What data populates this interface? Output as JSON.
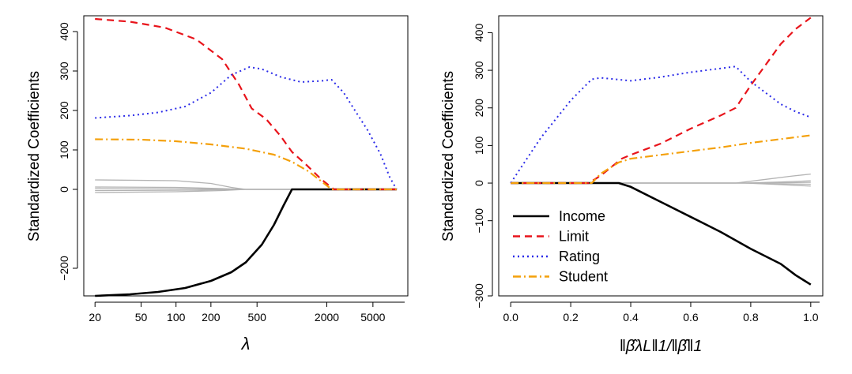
{
  "chart_data": [
    {
      "type": "line",
      "xscale": "log",
      "xlim": [
        16,
        10000
      ],
      "ylim": [
        -270,
        440
      ],
      "xlabel": "λ",
      "ylabel": "Standardized Coefficients",
      "x_ticks": [
        20,
        50,
        100,
        200,
        500,
        2000,
        5000
      ],
      "x_tick_labels": [
        "20",
        "50",
        "100",
        "200",
        "500",
        "2000",
        "5000"
      ],
      "y_ticks": [
        -200,
        0,
        100,
        200,
        300,
        400
      ],
      "y_tick_labels": [
        "−200",
        "0",
        "100",
        "200",
        "300",
        "400"
      ],
      "grid": false,
      "series": [
        {
          "name": "Income",
          "color": "#000000",
          "dash": "solid",
          "width": 2.6,
          "points": [
            [
              20,
              -270
            ],
            [
              40,
              -266
            ],
            [
              70,
              -260
            ],
            [
              120,
              -250
            ],
            [
              200,
              -232
            ],
            [
              300,
              -210
            ],
            [
              400,
              -185
            ],
            [
              550,
              -140
            ],
            [
              700,
              -90
            ],
            [
              850,
              -40
            ],
            [
              1000,
              0
            ],
            [
              8000,
              0
            ]
          ]
        },
        {
          "name": "Limit",
          "color": "#e8141b",
          "dash": "dashed",
          "width": 2.2,
          "points": [
            [
              20,
              432
            ],
            [
              40,
              425
            ],
            [
              80,
              410
            ],
            [
              150,
              380
            ],
            [
              250,
              330
            ],
            [
              350,
              265
            ],
            [
              450,
              205
            ],
            [
              600,
              178
            ],
            [
              800,
              135
            ],
            [
              1000,
              95
            ],
            [
              1300,
              65
            ],
            [
              1800,
              25
            ],
            [
              2300,
              0
            ],
            [
              8000,
              0
            ]
          ]
        },
        {
          "name": "Rating",
          "color": "#2a2ae8",
          "dash": "dotted",
          "width": 2.0,
          "points": [
            [
              20,
              181
            ],
            [
              40,
              187
            ],
            [
              70,
              195
            ],
            [
              120,
              210
            ],
            [
              200,
              245
            ],
            [
              300,
              290
            ],
            [
              430,
              310
            ],
            [
              550,
              305
            ],
            [
              800,
              285
            ],
            [
              1200,
              272
            ],
            [
              1800,
              275
            ],
            [
              2200,
              278
            ],
            [
              2800,
              245
            ],
            [
              3500,
              200
            ],
            [
              4500,
              150
            ],
            [
              5800,
              90
            ],
            [
              7000,
              30
            ],
            [
              8000,
              0
            ]
          ]
        },
        {
          "name": "Student",
          "color": "#f4a00a",
          "dash": "dashdot",
          "width": 2.2,
          "points": [
            [
              20,
              127
            ],
            [
              50,
              126
            ],
            [
              100,
              122
            ],
            [
              200,
              114
            ],
            [
              400,
              103
            ],
            [
              700,
              88
            ],
            [
              1000,
              70
            ],
            [
              1400,
              45
            ],
            [
              1800,
              20
            ],
            [
              2200,
              0
            ],
            [
              8000,
              0
            ]
          ]
        },
        {
          "name": "",
          "color": "#b3b3b3",
          "dash": "solid",
          "width": 1.3,
          "points": [
            [
              20,
              24
            ],
            [
              100,
              22
            ],
            [
              200,
              15
            ],
            [
              300,
              5
            ],
            [
              400,
              0
            ],
            [
              8000,
              0
            ]
          ]
        },
        {
          "name": "",
          "color": "#b3b3b3",
          "dash": "solid",
          "width": 1.3,
          "points": [
            [
              20,
              6
            ],
            [
              100,
              5
            ],
            [
              250,
              2
            ],
            [
              400,
              0
            ],
            [
              8000,
              0
            ]
          ]
        },
        {
          "name": "",
          "color": "#b3b3b3",
          "dash": "solid",
          "width": 1.3,
          "points": [
            [
              20,
              2
            ],
            [
              150,
              1
            ],
            [
              400,
              0
            ],
            [
              8000,
              0
            ]
          ]
        },
        {
          "name": "",
          "color": "#b3b3b3",
          "dash": "solid",
          "width": 1.3,
          "points": [
            [
              20,
              -3
            ],
            [
              150,
              -2
            ],
            [
              400,
              0
            ],
            [
              8000,
              0
            ]
          ]
        },
        {
          "name": "",
          "color": "#b3b3b3",
          "dash": "solid",
          "width": 1.3,
          "points": [
            [
              20,
              -8
            ],
            [
              100,
              -6
            ],
            [
              250,
              -3
            ],
            [
              400,
              0
            ],
            [
              8000,
              0
            ]
          ]
        }
      ]
    },
    {
      "type": "line",
      "xscale": "linear",
      "xlim": [
        -0.04,
        1.04
      ],
      "ylim": [
        -300,
        445
      ],
      "xlabel": "‖β̂λL‖1/‖β̂‖1",
      "ylabel": "Standardized Coefficients",
      "x_ticks": [
        0.0,
        0.2,
        0.4,
        0.6,
        0.8,
        1.0
      ],
      "x_tick_labels": [
        "0.0",
        "0.2",
        "0.4",
        "0.6",
        "0.8",
        "1.0"
      ],
      "y_ticks": [
        -300,
        -100,
        0,
        100,
        200,
        300,
        400
      ],
      "y_tick_labels": [
        "−300",
        "−100",
        "0",
        "100",
        "200",
        "300",
        "400"
      ],
      "grid": false,
      "legend": {
        "position": "bottom-left",
        "items": [
          {
            "label": "Income",
            "color": "#000000",
            "dash": "solid"
          },
          {
            "label": "Limit",
            "color": "#e8141b",
            "dash": "dashed"
          },
          {
            "label": "Rating",
            "color": "#2a2ae8",
            "dash": "dotted"
          },
          {
            "label": "Student",
            "color": "#f4a00a",
            "dash": "dashdot"
          }
        ]
      },
      "series": [
        {
          "name": "Income",
          "color": "#000000",
          "dash": "solid",
          "width": 2.6,
          "points": [
            [
              0,
              0
            ],
            [
              0.36,
              0
            ],
            [
              0.4,
              -10
            ],
            [
              0.5,
              -50
            ],
            [
              0.6,
              -90
            ],
            [
              0.7,
              -130
            ],
            [
              0.8,
              -175
            ],
            [
              0.9,
              -215
            ],
            [
              0.95,
              -245
            ],
            [
              1.0,
              -270
            ]
          ]
        },
        {
          "name": "Limit",
          "color": "#e8141b",
          "dash": "dashed",
          "width": 2.2,
          "points": [
            [
              0,
              0
            ],
            [
              0.26,
              0
            ],
            [
              0.3,
              20
            ],
            [
              0.37,
              65
            ],
            [
              0.4,
              75
            ],
            [
              0.5,
              105
            ],
            [
              0.6,
              145
            ],
            [
              0.7,
              180
            ],
            [
              0.75,
              200
            ],
            [
              0.8,
              260
            ],
            [
              0.9,
              370
            ],
            [
              0.95,
              410
            ],
            [
              1.0,
              440
            ]
          ]
        },
        {
          "name": "Rating",
          "color": "#2a2ae8",
          "dash": "dotted",
          "width": 2.0,
          "points": [
            [
              0,
              0
            ],
            [
              0.1,
              120
            ],
            [
              0.2,
              220
            ],
            [
              0.27,
              276
            ],
            [
              0.3,
              280
            ],
            [
              0.4,
              272
            ],
            [
              0.5,
              282
            ],
            [
              0.6,
              295
            ],
            [
              0.7,
              305
            ],
            [
              0.75,
              310
            ],
            [
              0.8,
              270
            ],
            [
              0.9,
              210
            ],
            [
              0.95,
              190
            ],
            [
              1.0,
              175
            ]
          ]
        },
        {
          "name": "Student",
          "color": "#f4a00a",
          "dash": "dashdot",
          "width": 2.2,
          "points": [
            [
              0,
              0
            ],
            [
              0.27,
              0
            ],
            [
              0.3,
              25
            ],
            [
              0.36,
              55
            ],
            [
              0.4,
              65
            ],
            [
              0.5,
              75
            ],
            [
              0.6,
              85
            ],
            [
              0.7,
              95
            ],
            [
              0.8,
              107
            ],
            [
              0.9,
              117
            ],
            [
              1.0,
              127
            ]
          ]
        },
        {
          "name": "",
          "color": "#b3b3b3",
          "dash": "solid",
          "width": 1.3,
          "points": [
            [
              0,
              0
            ],
            [
              0.75,
              0
            ],
            [
              0.85,
              10
            ],
            [
              0.93,
              18
            ],
            [
              1.0,
              24
            ]
          ]
        },
        {
          "name": "",
          "color": "#b3b3b3",
          "dash": "solid",
          "width": 1.3,
          "points": [
            [
              0,
              0
            ],
            [
              0.78,
              0
            ],
            [
              0.9,
              3
            ],
            [
              1.0,
              6
            ]
          ]
        },
        {
          "name": "",
          "color": "#b3b3b3",
          "dash": "solid",
          "width": 1.3,
          "points": [
            [
              0,
              0
            ],
            [
              0.78,
              0
            ],
            [
              0.9,
              1
            ],
            [
              1.0,
              2
            ]
          ]
        },
        {
          "name": "",
          "color": "#b3b3b3",
          "dash": "solid",
          "width": 1.3,
          "points": [
            [
              0,
              0
            ],
            [
              0.78,
              0
            ],
            [
              0.9,
              -2
            ],
            [
              1.0,
              -3
            ]
          ]
        },
        {
          "name": "",
          "color": "#b3b3b3",
          "dash": "solid",
          "width": 1.3,
          "points": [
            [
              0,
              0
            ],
            [
              0.78,
              0
            ],
            [
              0.9,
              -4
            ],
            [
              1.0,
              -8
            ]
          ]
        }
      ]
    }
  ]
}
